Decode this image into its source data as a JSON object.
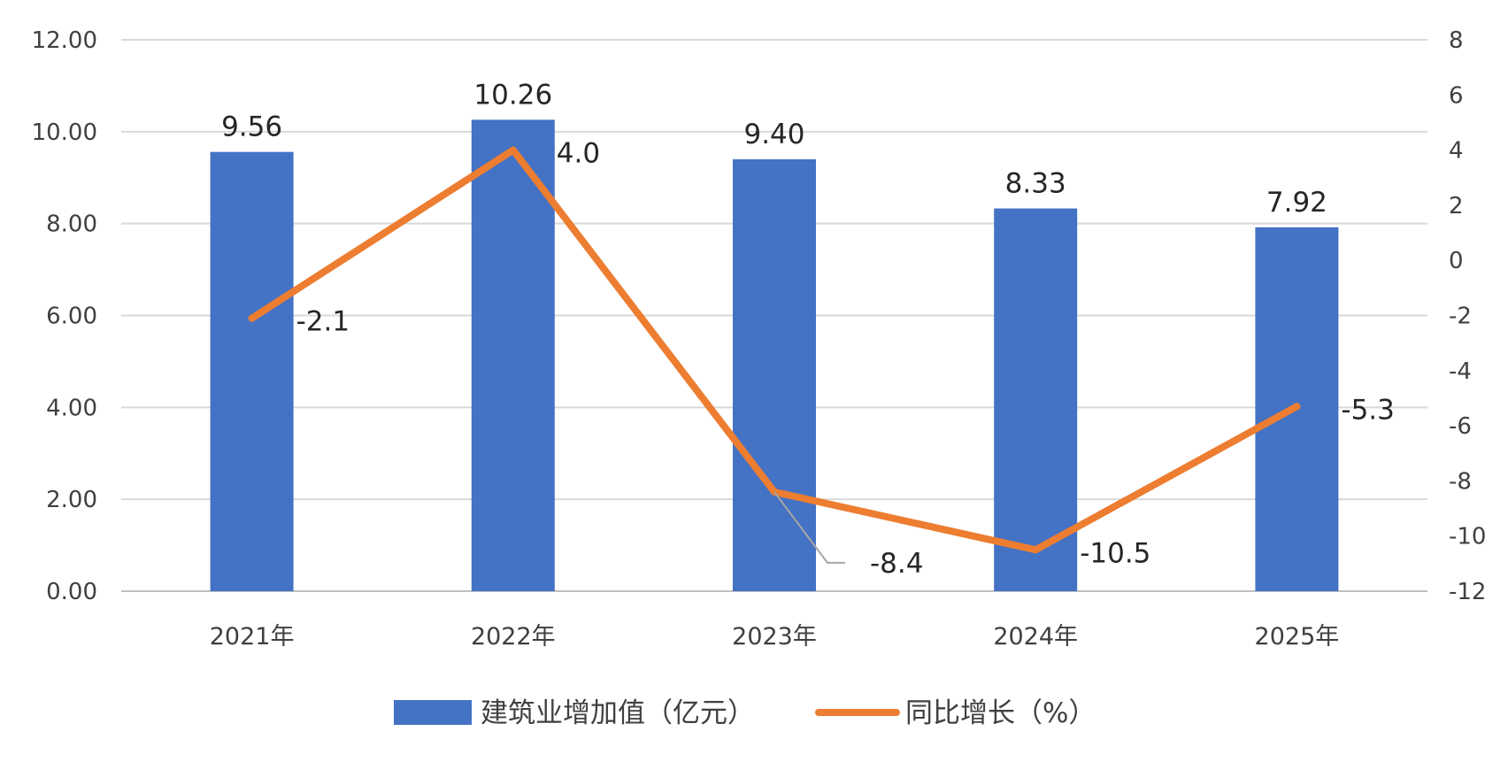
{
  "chart_data": {
    "type": "bar",
    "categories": [
      "2021年",
      "2022年",
      "2023年",
      "2024年",
      "2025年"
    ],
    "series": [
      {
        "name": "建筑业增加值（亿元）",
        "type": "bar",
        "axis": "left",
        "values": [
          9.56,
          10.26,
          9.4,
          8.33,
          7.92
        ],
        "labels": [
          "9.56",
          "10.26",
          "9.40",
          "8.33",
          "7.92"
        ],
        "color": "#4472C4"
      },
      {
        "name": "同比增长（%）",
        "type": "line",
        "axis": "right",
        "values": [
          -2.1,
          4.0,
          -8.4,
          -10.5,
          -5.3
        ],
        "labels": [
          "-2.1",
          "4.0",
          "-8.4",
          "-10.5",
          "-5.3"
        ],
        "color": "#ED7D31"
      }
    ],
    "left_axis": {
      "ylim": [
        0,
        12
      ],
      "ticks": [
        "0.00",
        "2.00",
        "4.00",
        "6.00",
        "8.00",
        "10.00",
        "12.00"
      ]
    },
    "right_axis": {
      "ylim": [
        -12,
        8
      ],
      "ticks": [
        "-12",
        "-10",
        "-8",
        "-6",
        "-4",
        "-2",
        "0",
        "2",
        "4",
        "6",
        "8"
      ]
    },
    "grid": true,
    "legend": "bottom-center",
    "colors": {
      "grid": "#D9D9D9",
      "axis": "#BFBFBF",
      "leader": "#A6A6A6"
    }
  }
}
